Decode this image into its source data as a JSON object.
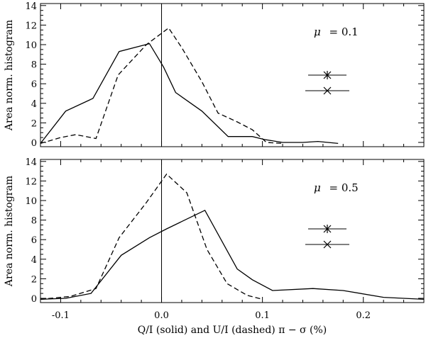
{
  "chart_data": [
    {
      "type": "line",
      "panel": "top",
      "ylabel": "Area norm. histogram",
      "xlim": [
        -0.12,
        0.26
      ],
      "ylim": [
        0,
        14
      ],
      "yticks": [
        "0",
        "2",
        "4",
        "6",
        "8",
        "10",
        "12",
        "14"
      ],
      "annotation": "μ = 0.1",
      "mu_symbol": "μ",
      "mu_text": "= 0.1",
      "series": [
        {
          "style": "solid",
          "points": [
            [
              -0.12,
              -0.1
            ],
            [
              -0.095,
              3.2
            ],
            [
              -0.068,
              4.5
            ],
            [
              -0.042,
              9.3
            ],
            [
              -0.012,
              10.1
            ],
            [
              0.002,
              7.7
            ],
            [
              0.014,
              5.1
            ],
            [
              0.04,
              3.2
            ],
            [
              0.066,
              0.6
            ],
            [
              0.09,
              0.6
            ],
            [
              0.102,
              0.3
            ],
            [
              0.12,
              0.0
            ],
            [
              0.14,
              0.0
            ],
            [
              0.155,
              0.1
            ],
            [
              0.165,
              0.0
            ],
            [
              0.175,
              -0.1
            ]
          ]
        },
        {
          "style": "dashed",
          "points": [
            [
              -0.12,
              -0.1
            ],
            [
              -0.1,
              0.5
            ],
            [
              -0.085,
              0.8
            ],
            [
              -0.065,
              0.4
            ],
            [
              -0.043,
              6.9
            ],
            [
              -0.015,
              10.0
            ],
            [
              0.007,
              11.7
            ],
            [
              0.02,
              9.7
            ],
            [
              0.04,
              6.2
            ],
            [
              0.056,
              3.0
            ],
            [
              0.075,
              2.1
            ],
            [
              0.09,
              1.3
            ],
            [
              0.104,
              0.0
            ],
            [
              0.12,
              -0.1
            ]
          ]
        }
      ],
      "legend_markers": [
        "asterisk",
        "cross"
      ]
    },
    {
      "type": "line",
      "panel": "bottom",
      "xlabel": "Q/I (solid) and U/I (dashed) π − σ (%)",
      "ylabel": "Area norm. histogram",
      "xlim": [
        -0.12,
        0.26
      ],
      "ylim": [
        0,
        14
      ],
      "xticks": [
        "-0.1",
        "0.0",
        "0.1",
        "0.2"
      ],
      "xtick_values": [
        -0.1,
        0.0,
        0.1,
        0.2
      ],
      "yticks": [
        "0",
        "2",
        "4",
        "6",
        "8",
        "10",
        "12",
        "14"
      ],
      "annotation": "μ = 0.5",
      "mu_symbol": "μ",
      "mu_text": "= 0.5",
      "series": [
        {
          "style": "solid",
          "points": [
            [
              -0.12,
              -0.1
            ],
            [
              -0.095,
              0.0
            ],
            [
              -0.07,
              0.5
            ],
            [
              -0.04,
              4.4
            ],
            [
              -0.012,
              6.2
            ],
            [
              0.005,
              7.1
            ],
            [
              0.043,
              9.0
            ],
            [
              0.075,
              3.0
            ],
            [
              0.09,
              1.9
            ],
            [
              0.11,
              0.8
            ],
            [
              0.15,
              1.0
            ],
            [
              0.18,
              0.8
            ],
            [
              0.22,
              0.1
            ],
            [
              0.26,
              -0.1
            ]
          ]
        },
        {
          "style": "dashed",
          "points": [
            [
              -0.12,
              -0.1
            ],
            [
              -0.09,
              0.2
            ],
            [
              -0.065,
              1.0
            ],
            [
              -0.042,
              6.2
            ],
            [
              -0.015,
              9.8
            ],
            [
              0.005,
              12.7
            ],
            [
              0.025,
              10.8
            ],
            [
              0.045,
              5.0
            ],
            [
              0.065,
              1.5
            ],
            [
              0.085,
              0.3
            ],
            [
              0.1,
              -0.1
            ]
          ]
        }
      ],
      "legend_markers": [
        "asterisk",
        "cross"
      ]
    }
  ]
}
